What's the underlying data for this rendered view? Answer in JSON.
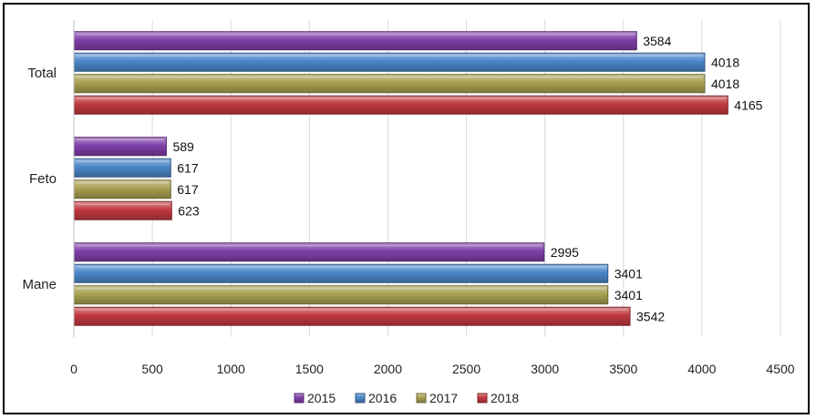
{
  "chart_data": {
    "type": "bar",
    "orientation": "horizontal",
    "categories": [
      "Total",
      "Feto",
      "Mane"
    ],
    "series": [
      {
        "name": "2015",
        "values": [
          3584,
          589,
          2995
        ],
        "color": "#7e3fa8"
      },
      {
        "name": "2016",
        "values": [
          4018,
          617,
          3401
        ],
        "color": "#4a86c8"
      },
      {
        "name": "2017",
        "values": [
          4018,
          617,
          3401
        ],
        "color": "#a8a050"
      },
      {
        "name": "2018",
        "values": [
          4165,
          623,
          3542
        ],
        "color": "#c0393f"
      }
    ],
    "xlim": [
      0,
      4500
    ],
    "x_ticks": [
      "0",
      "500",
      "1000",
      "1500",
      "2000",
      "2500",
      "3000",
      "3500",
      "4000",
      "4500"
    ],
    "grid": true,
    "legend_position": "bottom",
    "data_labels": true
  }
}
